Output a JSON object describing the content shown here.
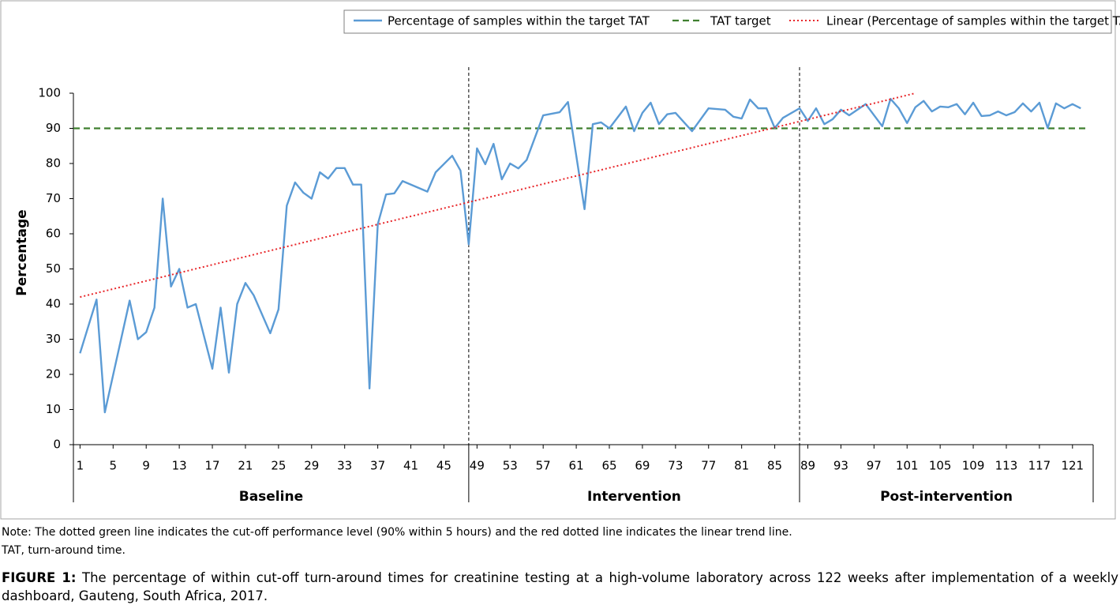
{
  "chart_data": {
    "type": "line",
    "y_label": "Percentage",
    "xlim": [
      0.2,
      123.5
    ],
    "xticks": [
      1,
      5,
      9,
      13,
      17,
      21,
      25,
      29,
      33,
      37,
      41,
      45,
      49,
      53,
      57,
      61,
      65,
      69,
      73,
      77,
      81,
      85,
      89,
      93,
      97,
      101,
      105,
      109,
      113,
      117,
      121
    ],
    "ylim": [
      0,
      100
    ],
    "yticks": [
      0,
      10,
      20,
      30,
      40,
      50,
      60,
      70,
      80,
      90,
      100
    ],
    "series": [
      {
        "name": "Percentage of samples within the target TAT",
        "color": "#5b9bd5",
        "x": [
          1,
          3,
          4,
          7,
          8,
          9,
          10,
          11,
          12,
          13,
          14,
          15,
          17,
          18,
          19,
          20,
          21,
          22,
          24,
          25,
          26,
          27,
          28,
          29,
          30,
          31,
          32,
          33,
          34,
          35,
          36,
          37,
          38,
          39,
          40,
          43,
          44,
          46,
          47,
          48,
          49,
          50,
          51,
          52,
          53,
          54,
          55,
          57,
          59,
          60,
          62,
          63,
          64,
          65,
          67,
          68,
          69,
          70,
          71,
          72,
          73,
          75,
          77,
          79,
          80,
          81,
          82,
          83,
          84,
          85,
          86,
          88,
          89,
          90,
          91,
          92,
          93,
          94,
          96,
          98,
          99,
          100,
          101,
          102,
          103,
          104,
          105,
          106,
          107,
          108,
          109,
          110,
          111,
          112,
          113,
          114,
          115,
          116,
          117,
          118,
          119,
          120,
          121,
          122
        ],
        "values": [
          26,
          41.3,
          9.2,
          41,
          30,
          32,
          39,
          70,
          45,
          50,
          39,
          40,
          21.6,
          39,
          20.5,
          40,
          46,
          42.5,
          31.7,
          38.5,
          68,
          74.6,
          71.7,
          70,
          77.5,
          75.7,
          78.7,
          78.7,
          74,
          74,
          16,
          62.7,
          71.2,
          71.5,
          75,
          72,
          77.5,
          82.2,
          78,
          57,
          84.3,
          79.8,
          85.6,
          75.5,
          80,
          78.6,
          81,
          93.7,
          94.6,
          97.5,
          67,
          91.2,
          91.7,
          90,
          96.2,
          89.2,
          94.4,
          97.3,
          91.2,
          94,
          94.4,
          89.2,
          95.7,
          95.3,
          93.3,
          92.8,
          98.2,
          95.7,
          95.7,
          90.1,
          93,
          95.7,
          92.1,
          95.7,
          91.2,
          92.6,
          95.3,
          93.7,
          96.9,
          90.6,
          98.4,
          95.7,
          91.5,
          96,
          97.8,
          94.8,
          96.2,
          96,
          96.9,
          94,
          97.3,
          93.5,
          93.7,
          94.8,
          93.7,
          94.6,
          97.1,
          94.8,
          97.3,
          90.1,
          97.1,
          95.7,
          96.9,
          95.7
        ]
      }
    ],
    "reference_line": {
      "name": "TAT target",
      "value": 90,
      "color": "#3f7f2f"
    },
    "trend": {
      "name": "Linear (Percentage of samples within the target TAT)",
      "color": "#e8262a",
      "x": [
        1,
        102
      ],
      "values": [
        42,
        100
      ]
    },
    "phase_breaks": [
      48,
      88
    ],
    "phases": [
      "Baseline",
      "Intervention",
      "Post-intervention"
    ]
  },
  "notes": [
    "Note: The dotted green line indicates the cut-off performance level (90% within 5 hours) and the red dotted line indicates the linear trend line.",
    "TAT, turn-around time."
  ],
  "caption": {
    "label": "FIGURE 1:",
    "text": "The percentage of within cut-off turn-around times for creatinine testing at a high-volume laboratory across 122 weeks after implementation of a weekly dashboard, Gauteng, South Africa, 2017."
  }
}
